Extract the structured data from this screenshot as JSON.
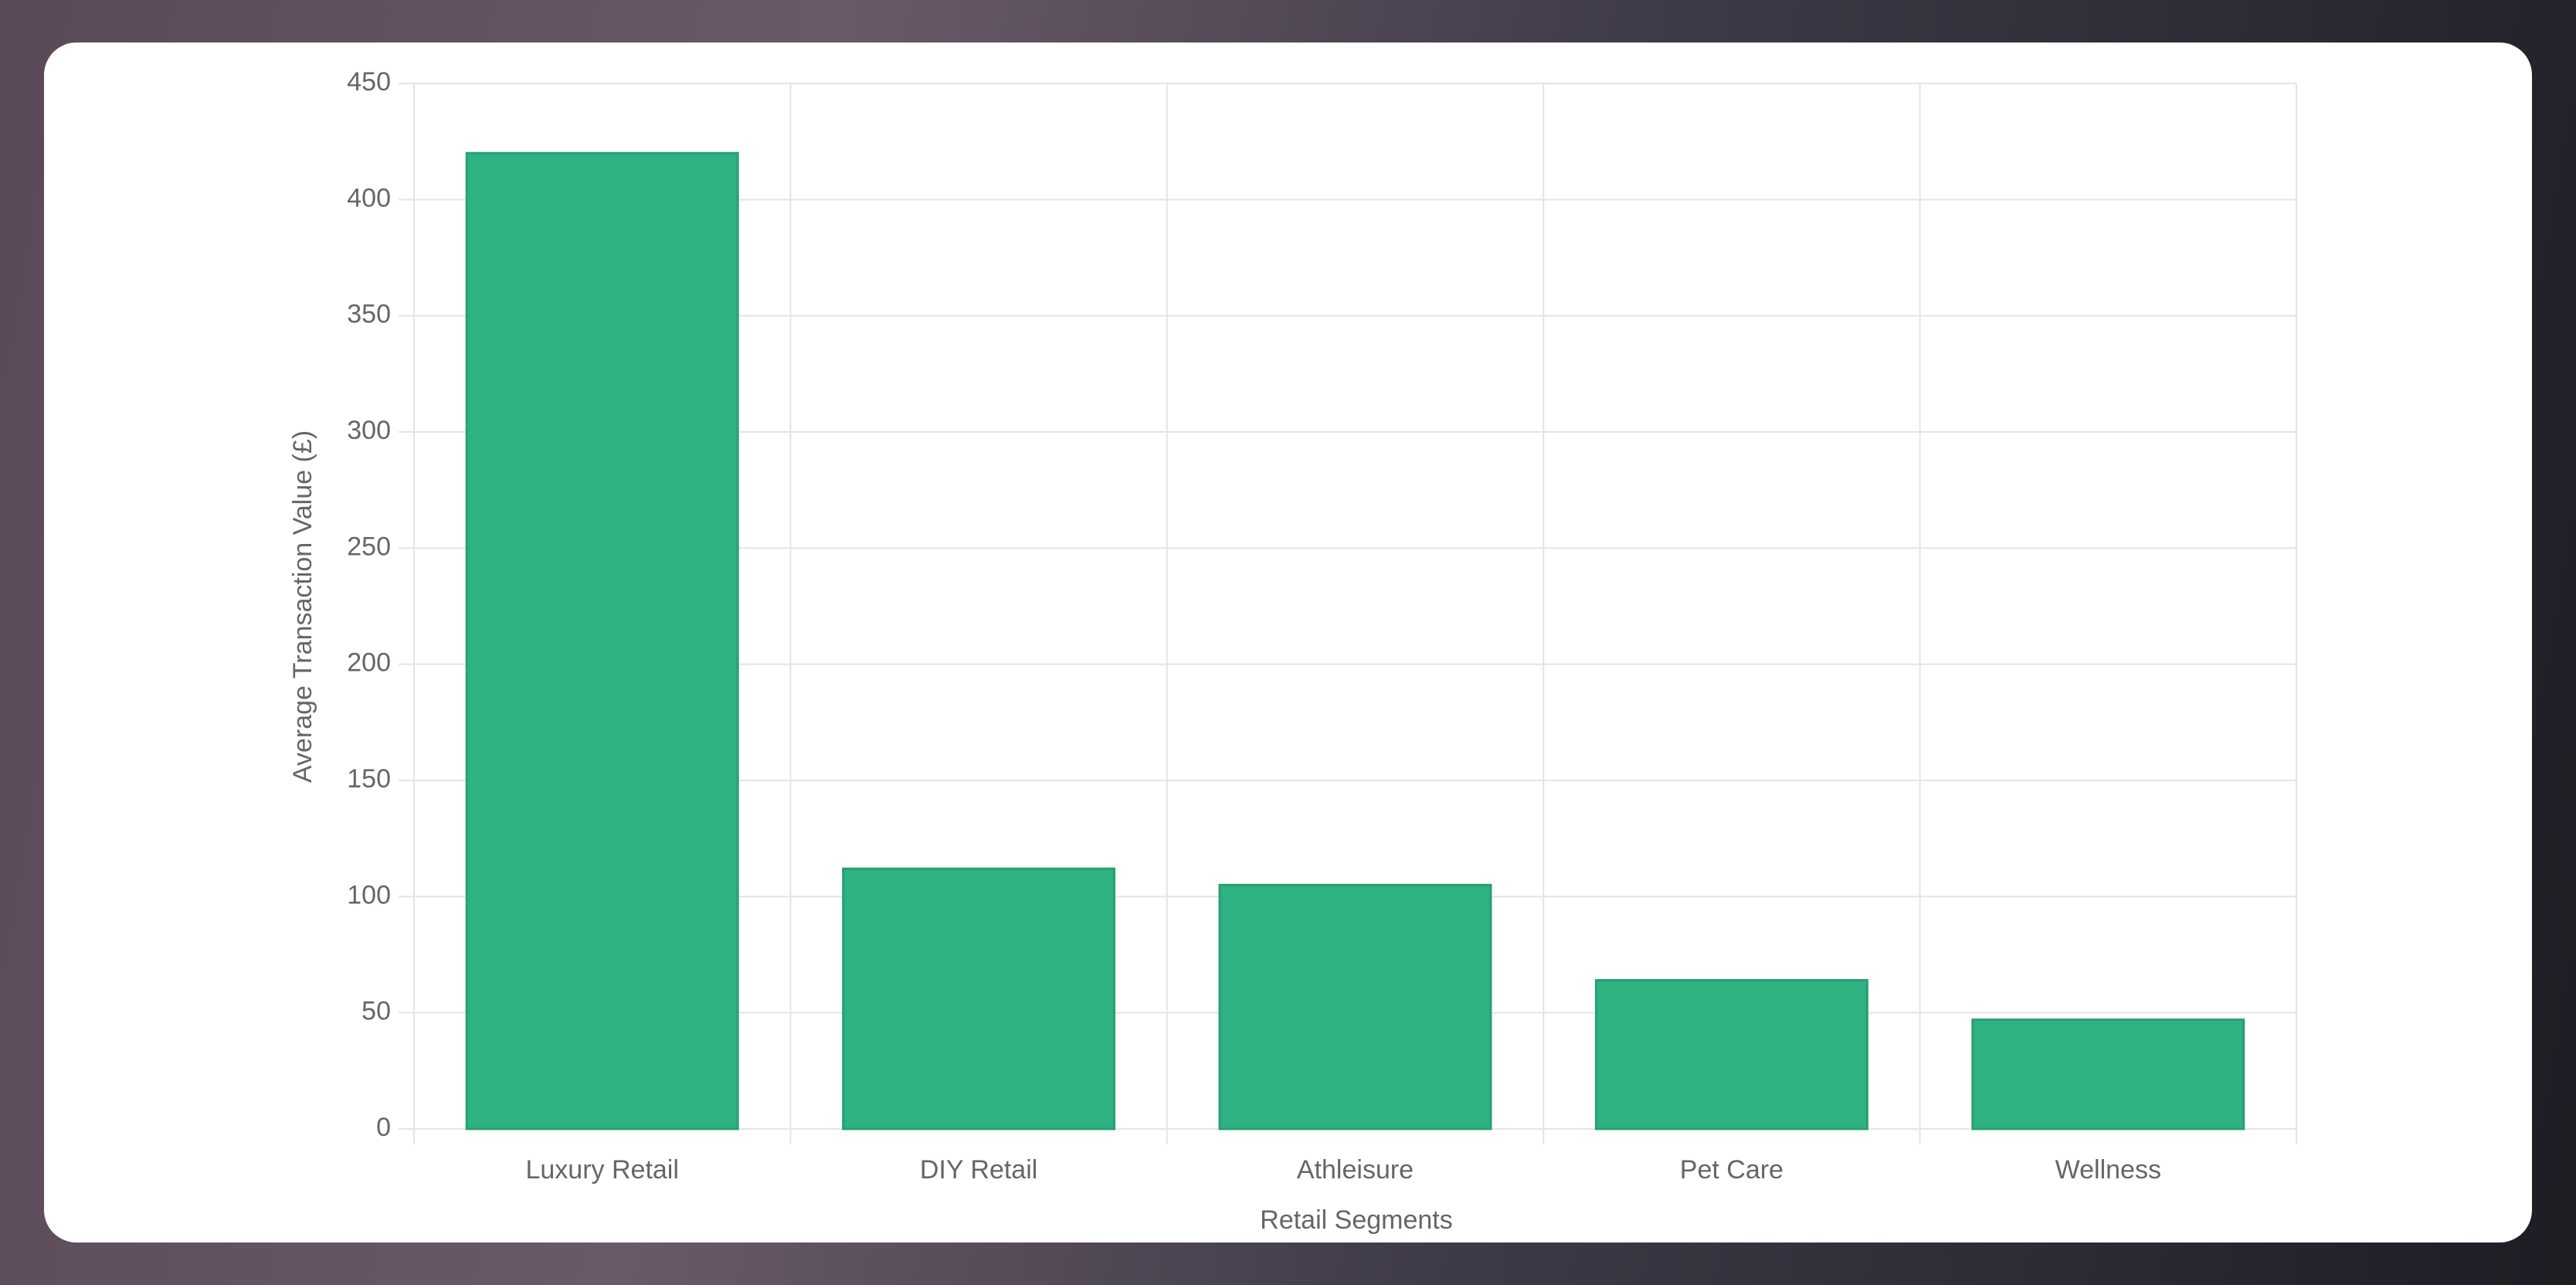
{
  "chart_data": {
    "type": "bar",
    "x_label": "Retail Segments",
    "y_label": "Average Transaction Value (£)",
    "categories": [
      "Luxury Retail",
      "DIY Retail",
      "Athleisure",
      "Pet Care",
      "Wellness"
    ],
    "values": [
      420,
      112,
      105,
      64,
      47
    ],
    "color": "#2eb282",
    "border_color": "#27a072",
    "ylim": [
      0,
      450
    ],
    "yticks": [
      0,
      50,
      100,
      150,
      200,
      250,
      300,
      350,
      400,
      450
    ],
    "grid": true
  }
}
